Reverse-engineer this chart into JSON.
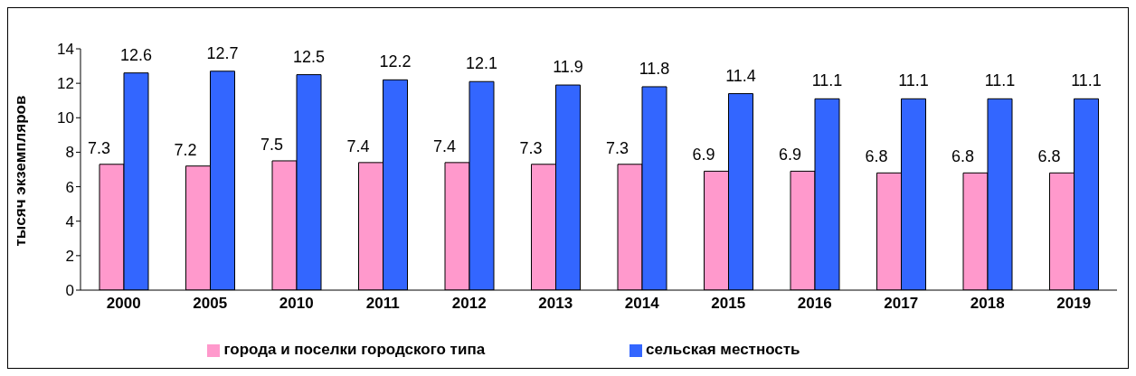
{
  "chart_data": {
    "type": "bar",
    "ylabel": "тысяч экземпляров",
    "categories": [
      "2000",
      "2005",
      "2010",
      "2011",
      "2012",
      "2013",
      "2014",
      "2015",
      "2016",
      "2017",
      "2018",
      "2019"
    ],
    "series": [
      {
        "name": "города и поселки городского типа",
        "color": "#ff99cc",
        "values": [
          7.3,
          7.2,
          7.5,
          7.4,
          7.4,
          7.3,
          7.3,
          6.9,
          6.9,
          6.8,
          6.8,
          6.8
        ]
      },
      {
        "name": "сельская местность",
        "color": "#3366ff",
        "values": [
          12.6,
          12.7,
          12.5,
          12.2,
          12.1,
          11.9,
          11.8,
          11.4,
          11.1,
          11.1,
          11.1,
          11.1
        ]
      }
    ],
    "ylim": [
      0,
      14
    ],
    "yticks": [
      0,
      2,
      4,
      6,
      8,
      10,
      12,
      14
    ],
    "grid": false,
    "legend": "bottom",
    "data_labels": true
  }
}
